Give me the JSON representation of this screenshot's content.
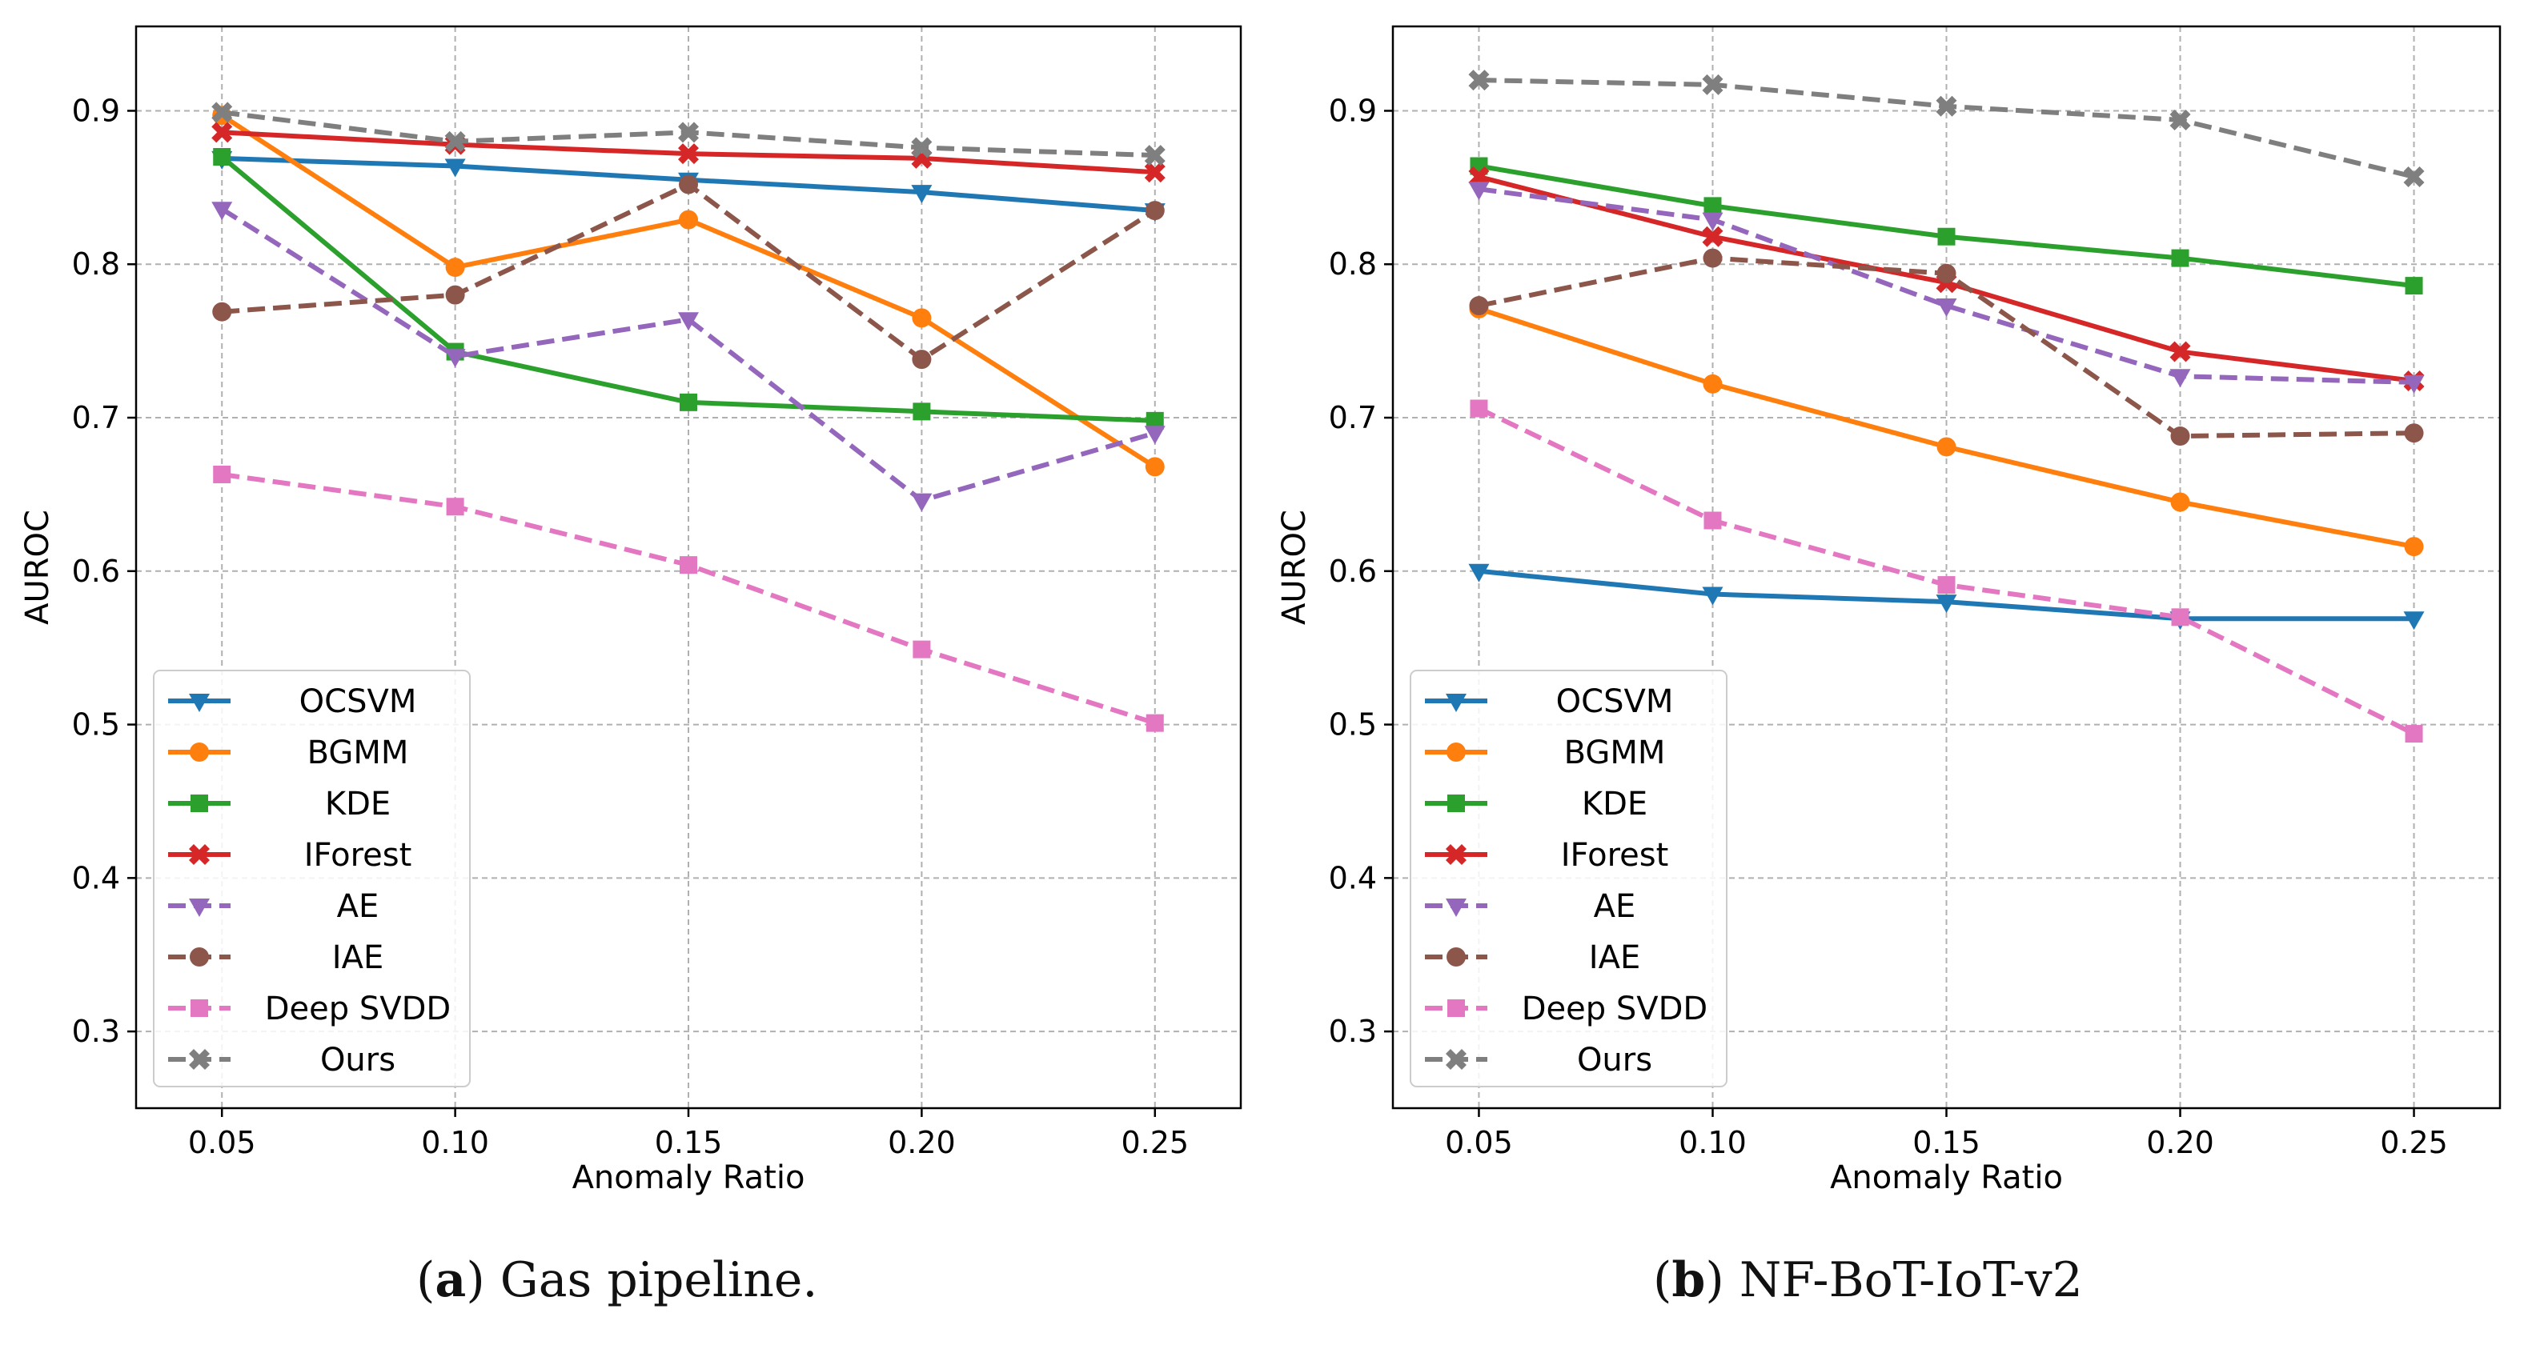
{
  "chart_data": [
    {
      "type": "line",
      "panel": "a",
      "xlabel": "Anomaly Ratio",
      "ylabel": "AUROC",
      "x": [
        0.05,
        0.1,
        0.15,
        0.2,
        0.25
      ],
      "x_tick_labels": [
        "0.05",
        "0.10",
        "0.15",
        "0.20",
        "0.25"
      ],
      "xlim": [
        0.0316,
        0.2684
      ],
      "ylim": [
        0.25,
        0.955
      ],
      "y_ticks": [
        0.3,
        0.4,
        0.5,
        0.6,
        0.7,
        0.8,
        0.9
      ],
      "y_tick_labels": [
        "0.3",
        "0.4",
        "0.5",
        "0.6",
        "0.7",
        "0.8",
        "0.9"
      ],
      "grid": true,
      "legend_position": "lower-left",
      "caption": {
        "letter": "a",
        "text": ") Gas pipeline."
      },
      "series": [
        {
          "name": "OCSVM",
          "color": "#1f77b4",
          "marker": "triangle-down",
          "dashed": false,
          "values": [
            0.869,
            0.864,
            0.855,
            0.847,
            0.835
          ]
        },
        {
          "name": "BGMM",
          "color": "#ff7f0e",
          "marker": "circle",
          "dashed": false,
          "values": [
            0.897,
            0.798,
            0.829,
            0.765,
            0.668
          ]
        },
        {
          "name": "KDE",
          "color": "#2ca02c",
          "marker": "square",
          "dashed": false,
          "values": [
            0.87,
            0.743,
            0.71,
            0.704,
            0.698
          ]
        },
        {
          "name": "IForest",
          "color": "#d62728",
          "marker": "x",
          "dashed": false,
          "values": [
            0.886,
            0.878,
            0.872,
            0.869,
            0.86
          ]
        },
        {
          "name": "AE",
          "color": "#9467bd",
          "marker": "triangle-down",
          "dashed": true,
          "values": [
            0.836,
            0.74,
            0.764,
            0.646,
            0.69
          ]
        },
        {
          "name": "IAE",
          "color": "#8c564b",
          "marker": "circle",
          "dashed": true,
          "values": [
            0.769,
            0.78,
            0.852,
            0.738,
            0.835
          ]
        },
        {
          "name": "Deep SVDD",
          "color": "#e377c2",
          "marker": "square",
          "dashed": true,
          "values": [
            0.663,
            0.642,
            0.604,
            0.549,
            0.501
          ]
        },
        {
          "name": "Ours",
          "color": "#7f7f7f",
          "marker": "x",
          "dashed": true,
          "values": [
            0.899,
            0.88,
            0.886,
            0.876,
            0.871
          ]
        }
      ]
    },
    {
      "type": "line",
      "panel": "b",
      "xlabel": "Anomaly Ratio",
      "ylabel": "AUROC",
      "x": [
        0.05,
        0.1,
        0.15,
        0.2,
        0.25
      ],
      "x_tick_labels": [
        "0.05",
        "0.10",
        "0.15",
        "0.20",
        "0.25"
      ],
      "xlim": [
        0.0316,
        0.2684
      ],
      "ylim": [
        0.25,
        0.955
      ],
      "y_ticks": [
        0.3,
        0.4,
        0.5,
        0.6,
        0.7,
        0.8,
        0.9
      ],
      "y_tick_labels": [
        "0.3",
        "0.4",
        "0.5",
        "0.6",
        "0.7",
        "0.8",
        "0.9"
      ],
      "grid": true,
      "legend_position": "lower-left",
      "caption": {
        "letter": "b",
        "text": ") NF-BoT-IoT-v2"
      },
      "series": [
        {
          "name": "OCSVM",
          "color": "#1f77b4",
          "marker": "triangle-down",
          "dashed": false,
          "values": [
            0.6,
            0.585,
            0.58,
            0.569,
            0.569
          ]
        },
        {
          "name": "BGMM",
          "color": "#ff7f0e",
          "marker": "circle",
          "dashed": false,
          "values": [
            0.771,
            0.722,
            0.681,
            0.645,
            0.616
          ]
        },
        {
          "name": "KDE",
          "color": "#2ca02c",
          "marker": "square",
          "dashed": false,
          "values": [
            0.864,
            0.838,
            0.818,
            0.804,
            0.786
          ]
        },
        {
          "name": "IForest",
          "color": "#d62728",
          "marker": "x",
          "dashed": false,
          "values": [
            0.857,
            0.818,
            0.788,
            0.743,
            0.724
          ]
        },
        {
          "name": "AE",
          "color": "#9467bd",
          "marker": "triangle-down",
          "dashed": true,
          "values": [
            0.849,
            0.829,
            0.773,
            0.727,
            0.723
          ]
        },
        {
          "name": "IAE",
          "color": "#8c564b",
          "marker": "circle",
          "dashed": true,
          "values": [
            0.773,
            0.804,
            0.794,
            0.688,
            0.69
          ]
        },
        {
          "name": "Deep SVDD",
          "color": "#e377c2",
          "marker": "square",
          "dashed": true,
          "values": [
            0.706,
            0.633,
            0.591,
            0.57,
            0.494
          ]
        },
        {
          "name": "Ours",
          "color": "#7f7f7f",
          "marker": "x",
          "dashed": true,
          "values": [
            0.92,
            0.917,
            0.903,
            0.894,
            0.857
          ]
        }
      ]
    }
  ]
}
